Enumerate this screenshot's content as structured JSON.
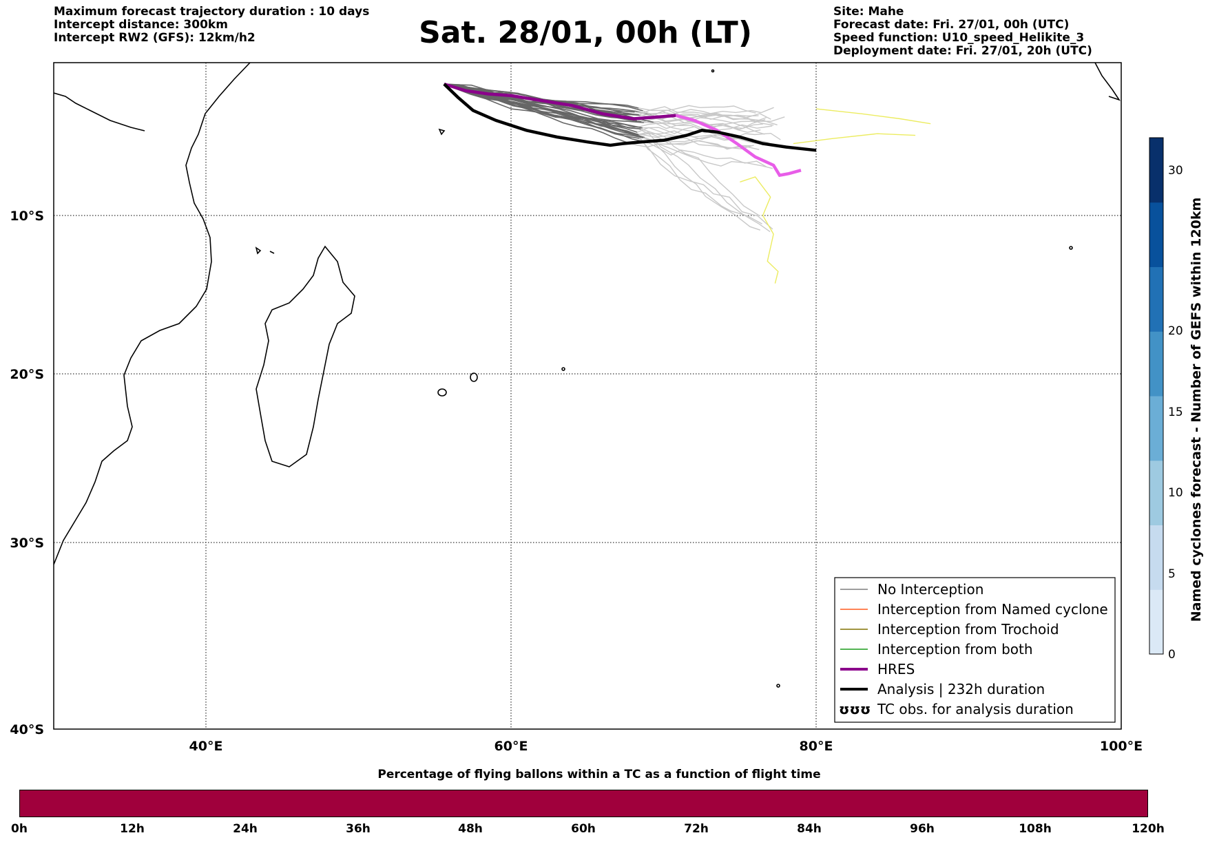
{
  "header": {
    "left_lines": [
      "Maximum forecast trajectory duration : 10 days",
      "Intercept distance: 300km",
      "Intercept RW2 (GFS):  12km/h2"
    ],
    "title": "Sat. 28/01, 00h (LT)",
    "right_lines": [
      "Site: Mahe",
      "Forecast date: Fri. 27/01, 00h (UTC)",
      "Speed function: U10_speed_Helikite_3",
      "Deployment date: Fri. 27/01, 20h (UTC)"
    ]
  },
  "map": {
    "lon_range": [
      30,
      100
    ],
    "lat_range": [
      -40,
      0
    ],
    "x_ticks": [
      "40°E",
      "60°E",
      "80°E",
      "100°E"
    ],
    "y_ticks": [
      "10°S",
      "20°S",
      "30°S",
      "40°S"
    ]
  },
  "legend": {
    "items": [
      {
        "label": "No Interception",
        "color": "#7f7f7f",
        "style": "thin"
      },
      {
        "label": "Interception from Named cyclone",
        "color": "#ff5a1e",
        "style": "thin"
      },
      {
        "label": "Interception from Trochoid",
        "color": "#807000",
        "style": "thin"
      },
      {
        "label": "Interception from both",
        "color": "#1a9a1a",
        "style": "thin"
      },
      {
        "label": "HRES",
        "color": "#8b008b",
        "style": "thick"
      },
      {
        "label": "Analysis | 232h duration",
        "color": "#000000",
        "style": "thick"
      },
      {
        "label": "TC obs. for analysis duration",
        "color": "#000000",
        "style": "symbol",
        "symbol": "ʊʊʊ"
      }
    ]
  },
  "colorbar": {
    "label": "Named cyclones forecast - Number of GEFS within 120km",
    "ticks": [
      "0",
      "5",
      "10",
      "15",
      "20",
      "30"
    ],
    "colors": [
      "#dbe9f6",
      "#c6dbef",
      "#9ecae1",
      "#6baed6",
      "#4292c6",
      "#2171b5",
      "#08519c",
      "#08306b"
    ]
  },
  "time_bar": {
    "title": "Percentage of flying ballons within a TC as a function of flight time",
    "color": "#a0003c",
    "ticks": [
      "0h",
      "12h",
      "24h",
      "36h",
      "48h",
      "60h",
      "72h",
      "84h",
      "96h",
      "108h",
      "120h"
    ]
  },
  "chart_data": {
    "type": "map-trajectories",
    "site": "Mahe",
    "origin": {
      "lon": 55.6,
      "lat": -4.6
    },
    "series": [
      {
        "name": "HRES",
        "color": "#8b008b",
        "points": [
          [
            55.6,
            -4.6
          ],
          [
            57,
            -5.0
          ],
          [
            58.5,
            -5.2
          ],
          [
            60,
            -5.3
          ],
          [
            62,
            -5.6
          ],
          [
            64,
            -5.9
          ],
          [
            66,
            -6.4
          ],
          [
            68,
            -6.7
          ],
          [
            69.5,
            -6.6
          ],
          [
            70.8,
            -6.5
          ],
          [
            72,
            -6.8
          ],
          [
            73.5,
            -7.4
          ],
          [
            74.8,
            -8.2
          ],
          [
            76,
            -9.0
          ],
          [
            77.2,
            -9.5
          ],
          [
            77.6,
            -10.1
          ],
          [
            78.2,
            -10.0
          ],
          [
            79,
            -9.8
          ]
        ]
      },
      {
        "name": "Analysis | 232h duration",
        "color": "#000000",
        "points": [
          [
            55.6,
            -4.6
          ],
          [
            56.5,
            -5.4
          ],
          [
            57.5,
            -6.2
          ],
          [
            59,
            -6.8
          ],
          [
            61,
            -7.4
          ],
          [
            63,
            -7.8
          ],
          [
            65,
            -8.1
          ],
          [
            66.5,
            -8.3
          ],
          [
            67.3,
            -8.2
          ],
          [
            68.5,
            -8.1
          ],
          [
            70,
            -8.0
          ],
          [
            71.5,
            -7.7
          ],
          [
            72.5,
            -7.4
          ],
          [
            73.5,
            -7.5
          ],
          [
            75,
            -7.8
          ],
          [
            76.5,
            -8.2
          ],
          [
            78,
            -8.4
          ],
          [
            80,
            -8.6
          ]
        ]
      }
    ]
  }
}
